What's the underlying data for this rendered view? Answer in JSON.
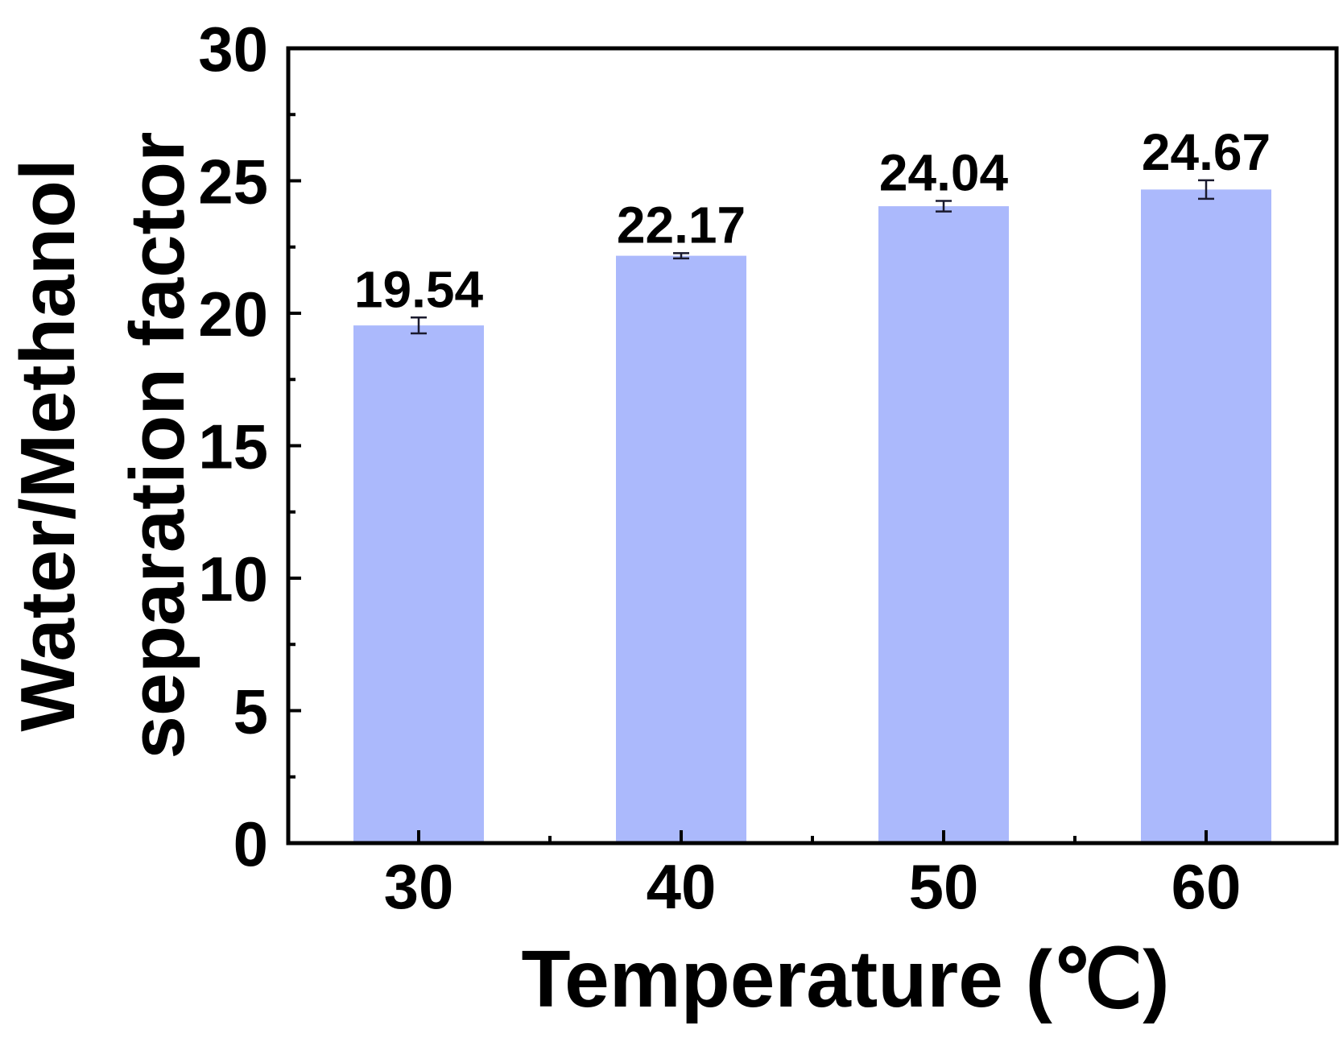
{
  "chart_data": {
    "type": "bar",
    "title": "",
    "xlabel": "Temperature (℃)",
    "ylabel_lines": [
      "Water/Methanol",
      "separation factor"
    ],
    "ylabel": "Water/Methanol separation factor",
    "categories": [
      "30",
      "40",
      "50",
      "60"
    ],
    "values": [
      19.54,
      22.17,
      24.04,
      24.67
    ],
    "value_labels": [
      "19.54",
      "22.17",
      "24.04",
      "24.67"
    ],
    "errors": [
      0.3,
      0.1,
      0.2,
      0.35
    ],
    "ylim": [
      0,
      30
    ],
    "yticks": [
      0,
      5,
      10,
      15,
      20,
      25,
      30
    ],
    "ytick_labels": [
      "0",
      "5",
      "10",
      "15",
      "20",
      "25",
      "30"
    ],
    "y_minor_step": 2.5,
    "grid": false,
    "legend": null,
    "colors": {
      "bar": "#abb9fc",
      "axis": "#000000",
      "errorbar": "#1a1a2e",
      "background": "#ffffff"
    }
  }
}
